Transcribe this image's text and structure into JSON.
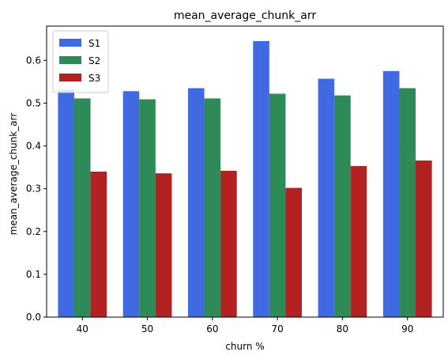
{
  "chart_data": {
    "type": "bar",
    "title": "mean_average_chunk_arr",
    "xlabel": "churn %",
    "ylabel": "mean_average_chunk_arr",
    "categories": [
      "40",
      "50",
      "60",
      "70",
      "80",
      "90"
    ],
    "series": [
      {
        "name": "S1",
        "color": "#4169e1",
        "values": [
          0.532,
          0.528,
          0.535,
          0.645,
          0.557,
          0.575
        ]
      },
      {
        "name": "S2",
        "color": "#2e8b57",
        "values": [
          0.511,
          0.509,
          0.511,
          0.522,
          0.518,
          0.535
        ]
      },
      {
        "name": "S3",
        "color": "#b22222",
        "values": [
          0.34,
          0.336,
          0.342,
          0.302,
          0.353,
          0.366
        ]
      }
    ],
    "ylim": [
      0,
      0.68
    ],
    "yticks": [
      "0.0",
      "0.1",
      "0.2",
      "0.3",
      "0.4",
      "0.5",
      "0.6"
    ],
    "grid": false,
    "legend_position": "top-left"
  }
}
